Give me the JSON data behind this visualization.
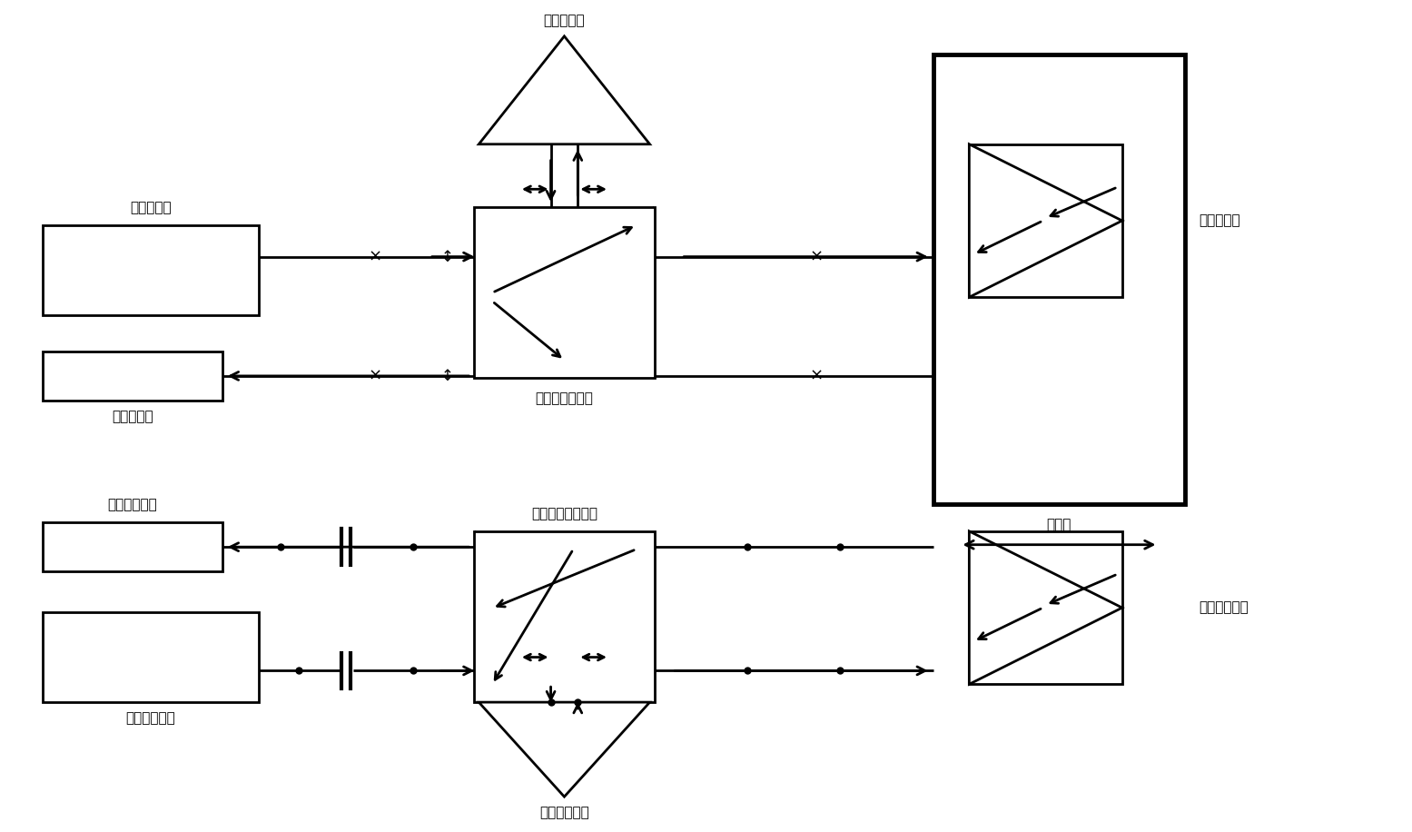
{
  "bg": "#ffffff",
  "lc": "#000000",
  "lw": 2.0,
  "lw_thick": 3.5,
  "fs": 11,
  "figw": 15.55,
  "figh": 9.16,
  "labels": {
    "std_laser": "标准激光器",
    "std_receiver": "标准接收器",
    "std_bs": "标准偏振分光镜",
    "std_ref": "标准参考镜",
    "std_meas": "标准测量镜",
    "cal_laser": "被校准激光器",
    "cal_receiver": "被校准接收器",
    "cal_bs": "被校准偏振分光镜",
    "cal_ref": "被校准参考镜",
    "cal_meas": "被校准测量镜",
    "stage": "运动台"
  },
  "xlim": [
    0,
    155.5
  ],
  "ylim": [
    0,
    91.6
  ]
}
